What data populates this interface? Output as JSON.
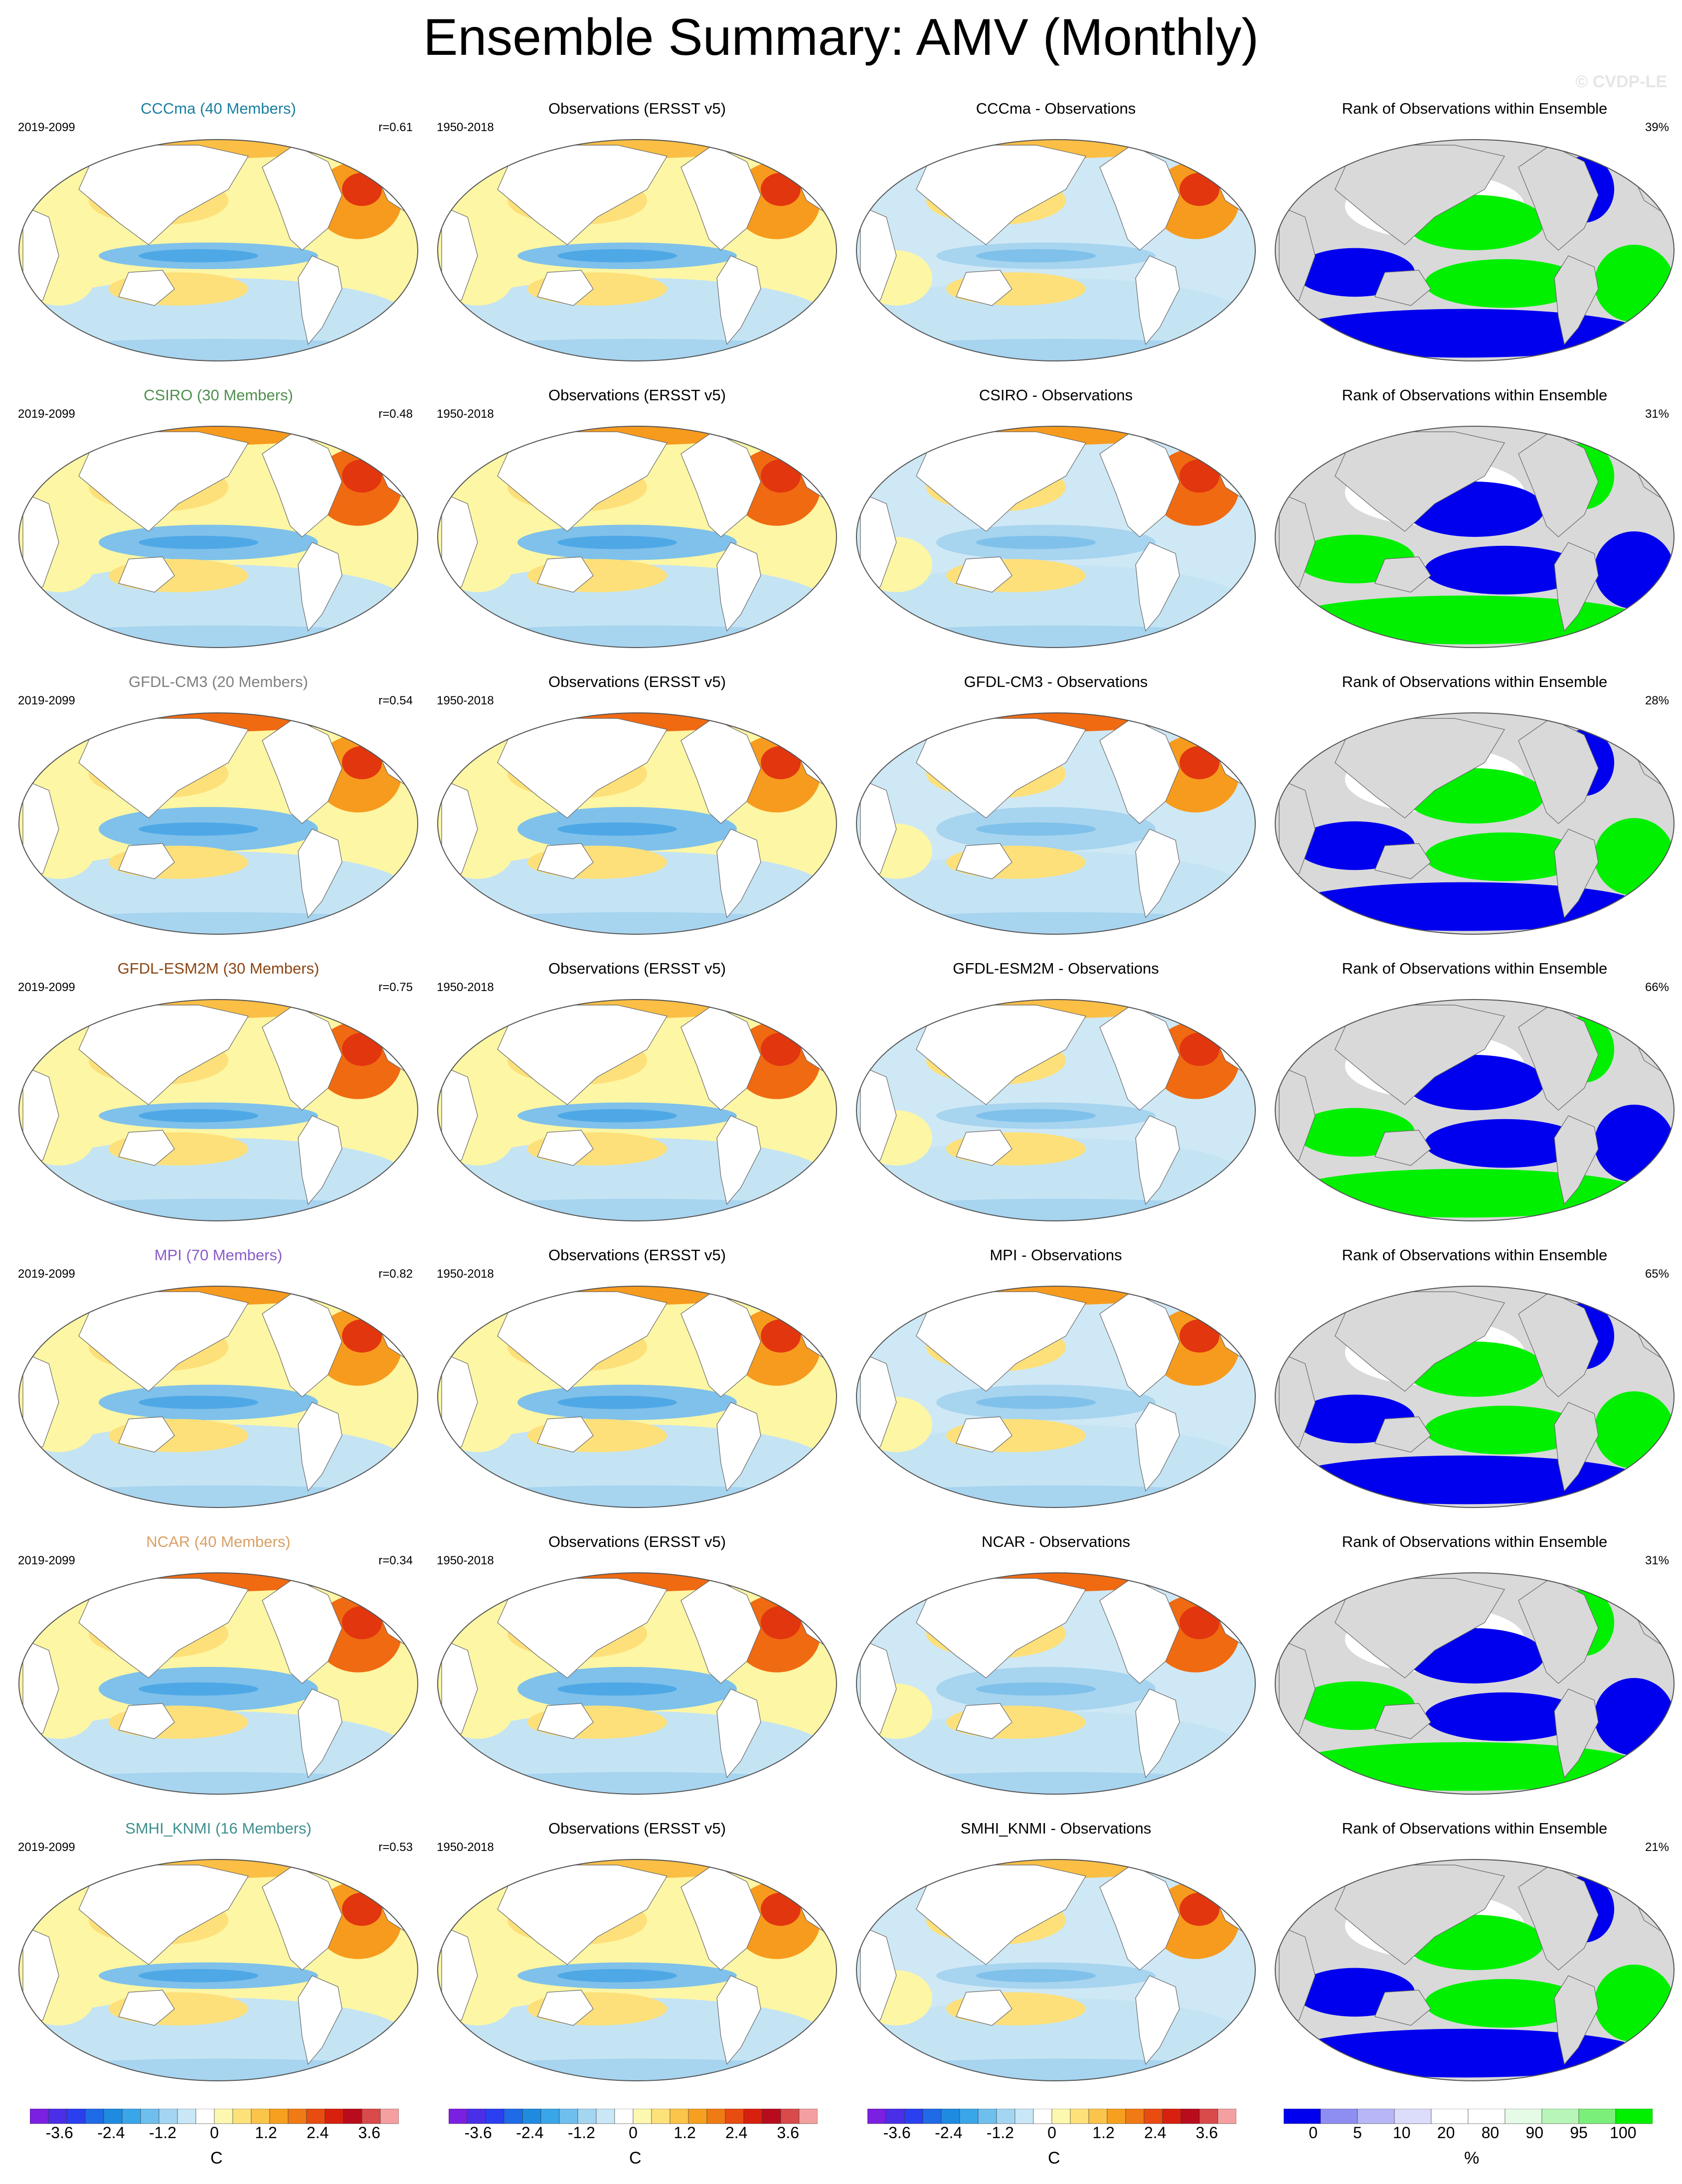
{
  "title": "Ensemble Summary: AMV (Monthly)",
  "watermark": "© CVDP-LE",
  "colors": {
    "ocean_pos": [
      "#fdf6a4",
      "#fde07a",
      "#fbbf45",
      "#f79b1e",
      "#f06a12",
      "#e2360f",
      "#c80d0d"
    ],
    "ocean_neg": [
      "#c4e4f4",
      "#a7d4ef",
      "#7fc1ea",
      "#4fa8e6",
      "#1f87e0",
      "#1d5fd9",
      "#2a1fd8"
    ],
    "rank": {
      "low": "#0000ee",
      "mid": "#ffffff",
      "high": "#00f000",
      "land": "#d9d9d9"
    }
  },
  "rows": [
    {
      "model": "CCCma (40 Members)",
      "model_color": "#1a7fa0",
      "period": "2019-2099",
      "r": "r=0.61",
      "obs_title": "Observations (ERSST v5)",
      "obs_period": "1950-2018",
      "diff_title": "CCCma - Observations",
      "rank_title": "Rank of Observations within Ensemble",
      "rank_pct": "39%"
    },
    {
      "model": "CSIRO (30 Members)",
      "model_color": "#4f8f4f",
      "period": "2019-2099",
      "r": "r=0.48",
      "obs_title": "Observations (ERSST v5)",
      "obs_period": "1950-2018",
      "diff_title": "CSIRO - Observations",
      "rank_title": "Rank of Observations within Ensemble",
      "rank_pct": "31%"
    },
    {
      "model": "GFDL-CM3 (20 Members)",
      "model_color": "#808080",
      "period": "2019-2099",
      "r": "r=0.54",
      "obs_title": "Observations (ERSST v5)",
      "obs_period": "1950-2018",
      "diff_title": "GFDL-CM3 - Observations",
      "rank_title": "Rank of Observations within Ensemble",
      "rank_pct": "28%"
    },
    {
      "model": "GFDL-ESM2M (30 Members)",
      "model_color": "#8b4513",
      "period": "2019-2099",
      "r": "r=0.75",
      "obs_title": "Observations (ERSST v5)",
      "obs_period": "1950-2018",
      "diff_title": "GFDL-ESM2M - Observations",
      "rank_title": "Rank of Observations within Ensemble",
      "rank_pct": "66%"
    },
    {
      "model": "MPI (70 Members)",
      "model_color": "#8a5cc8",
      "period": "2019-2099",
      "r": "r=0.82",
      "obs_title": "Observations (ERSST v5)",
      "obs_period": "1950-2018",
      "diff_title": "MPI - Observations",
      "rank_title": "Rank of Observations within Ensemble",
      "rank_pct": "65%"
    },
    {
      "model": "NCAR (40 Members)",
      "model_color": "#d9a066",
      "period": "2019-2099",
      "r": "r=0.34",
      "obs_title": "Observations (ERSST v5)",
      "obs_period": "1950-2018",
      "diff_title": "NCAR - Observations",
      "rank_title": "Rank of Observations within Ensemble",
      "rank_pct": "31%"
    },
    {
      "model": "SMHI_KNMI (16 Members)",
      "model_color": "#3f8f8f",
      "period": "2019-2099",
      "r": "r=0.53",
      "obs_title": "Observations (ERSST v5)",
      "obs_period": "1950-2018",
      "diff_title": "SMHI_KNMI - Observations",
      "rank_title": "Rank of Observations within Ensemble",
      "rank_pct": "21%"
    }
  ],
  "colorbar_temp": {
    "unit": "C",
    "ticks": [
      "-3.6",
      "-2.4",
      "-1.2",
      "0",
      "1.2",
      "2.4",
      "3.6"
    ],
    "colors": [
      "#7b1fe0",
      "#4b2ee8",
      "#2a3fef",
      "#1f6ae6",
      "#1f8be0",
      "#3aa6ea",
      "#6fbfee",
      "#a4d6f2",
      "#c9e7f7",
      "#ffffff",
      "#fdf8b0",
      "#fde27a",
      "#fbc44a",
      "#f7a020",
      "#f07a14",
      "#e84c10",
      "#d8200e",
      "#b80c1c",
      "#d94a4a",
      "#f4a0a0"
    ]
  },
  "colorbar_rank": {
    "unit": "%",
    "ticks": [
      "0",
      "5",
      "10",
      "20",
      "80",
      "90",
      "95",
      "100"
    ],
    "colors": [
      "#0000ee",
      "#8e8ef2",
      "#b7b7f6",
      "#dcdcfb",
      "#ffffff",
      "#ffffff",
      "#e6fbe6",
      "#b8f5b8",
      "#7aef7a",
      "#00f000"
    ]
  }
}
